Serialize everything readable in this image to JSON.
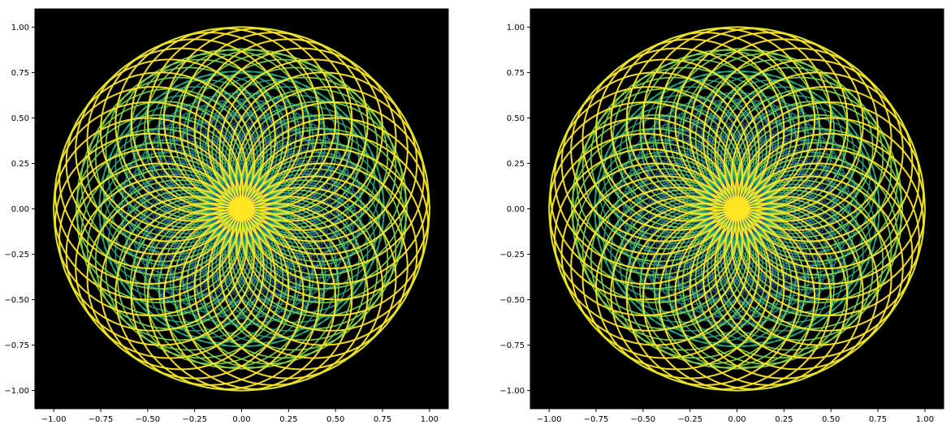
{
  "figure": {
    "background": "#ffffff",
    "axes_facecolor": "#000000"
  },
  "chart_data": [
    {
      "type": "line",
      "title": "",
      "xlabel": "",
      "ylabel": "",
      "xlim": [
        -1.1,
        1.1
      ],
      "ylim": [
        -1.1,
        1.1
      ],
      "xticks": [
        "−1.00",
        "−0.75",
        "−0.50",
        "−0.25",
        "0.00",
        "0.25",
        "0.50",
        "0.75",
        "1.00"
      ],
      "xtick_values": [
        -1.0,
        -0.75,
        -0.5,
        -0.25,
        0.0,
        0.25,
        0.5,
        0.75,
        1.0
      ],
      "yticks": [
        "1.00",
        "0.75",
        "0.50",
        "0.25",
        "0.00",
        "−0.25",
        "−0.50",
        "−0.75",
        "−1.00"
      ],
      "ytick_values": [
        1.0,
        0.75,
        0.5,
        0.25,
        0.0,
        -0.25,
        -0.5,
        -0.75,
        -1.0
      ],
      "grid": false,
      "legend": "none",
      "colormap": "viridis",
      "pattern": {
        "description": "families of circles passing through the origin, rotated around it",
        "circle_count": 36,
        "ring_count": 6,
        "radius_max": 0.5,
        "radius_min": 0.2
      }
    },
    {
      "type": "line",
      "title": "",
      "xlabel": "",
      "ylabel": "",
      "xlim": [
        -1.1,
        1.1
      ],
      "ylim": [
        -1.1,
        1.1
      ],
      "xticks": [
        "−1.00",
        "−0.75",
        "−0.50",
        "−0.25",
        "0.00",
        "0.25",
        "0.50",
        "0.75",
        "1.00"
      ],
      "xtick_values": [
        -1.0,
        -0.75,
        -0.5,
        -0.25,
        0.0,
        0.25,
        0.5,
        0.75,
        1.0
      ],
      "yticks": [
        "1.00",
        "0.75",
        "0.50",
        "0.25",
        "0.00",
        "−0.25",
        "−0.50",
        "−0.75",
        "−1.00"
      ],
      "ytick_values": [
        1.0,
        0.75,
        0.5,
        0.25,
        0.0,
        -0.25,
        -0.5,
        -0.75,
        -1.0
      ],
      "grid": false,
      "legend": "none",
      "colormap": "viridis",
      "pattern": {
        "description": "families of circles passing through the origin, rotated around it",
        "circle_count": 36,
        "ring_count": 6,
        "radius_max": 0.5,
        "radius_min": 0.2
      }
    }
  ]
}
